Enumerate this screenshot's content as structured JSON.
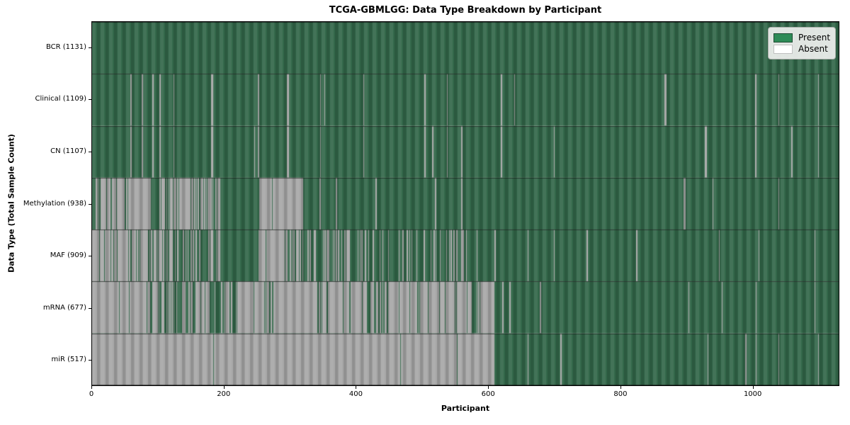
{
  "title": "TCGA-GBMLGG: Data Type Breakdown by Participant",
  "axes": {
    "x_label": "Participant",
    "y_label": "Data Type (Total Sample Count)"
  },
  "legend": {
    "items": [
      {
        "label": "Present",
        "color": "#2e8b57"
      },
      {
        "label": "Absent",
        "color": "#ffffff"
      }
    ]
  },
  "colors": {
    "present_legend": "#2e8b57",
    "present_plot": "#33684a",
    "absent_plot": "#a8a8a8",
    "background": "#ffffff"
  },
  "chart_data": {
    "type": "heatmap",
    "title": "TCGA-GBMLGG: Data Type Breakdown by Participant",
    "xlabel": "Participant",
    "ylabel": "Data Type (Total Sample Count)",
    "x_ticks": [
      0,
      200,
      400,
      600,
      800,
      1000
    ],
    "x_range": [
      0,
      1131
    ],
    "n_participants": 1131,
    "cell_states": [
      "Present",
      "Absent"
    ],
    "legend_position": "upper right",
    "grid": false,
    "rows": [
      {
        "label": "BCR (1131)",
        "data_type": "BCR",
        "total_samples": 1131,
        "absent_runs": []
      },
      {
        "label": "Clinical (1109)",
        "data_type": "Clinical",
        "total_samples": 1109,
        "absent_runs": [
          [
            59,
            60,
            1
          ],
          [
            76,
            77,
            1
          ],
          [
            92,
            93,
            1
          ],
          [
            103,
            104,
            1
          ],
          [
            124,
            125,
            1
          ],
          [
            181,
            183,
            1
          ],
          [
            252,
            253,
            1
          ],
          [
            296,
            298,
            1
          ],
          [
            346,
            347,
            1
          ],
          [
            352,
            353,
            1
          ],
          [
            411,
            412,
            1
          ],
          [
            504,
            505,
            1
          ],
          [
            538,
            539,
            1
          ],
          [
            620,
            621,
            1
          ],
          [
            640,
            641,
            1
          ],
          [
            868,
            870,
            1
          ],
          [
            1005,
            1006,
            1
          ],
          [
            1040,
            1041,
            1
          ],
          [
            1100,
            1101,
            1
          ]
        ]
      },
      {
        "label": "CN (1107)",
        "data_type": "CN",
        "total_samples": 1107,
        "absent_runs": [
          [
            59,
            60,
            1
          ],
          [
            76,
            77,
            1
          ],
          [
            92,
            93,
            1
          ],
          [
            103,
            104,
            1
          ],
          [
            124,
            125,
            1
          ],
          [
            181,
            183,
            1
          ],
          [
            246,
            247,
            1
          ],
          [
            252,
            253,
            1
          ],
          [
            296,
            298,
            1
          ],
          [
            346,
            347,
            1
          ],
          [
            411,
            412,
            1
          ],
          [
            504,
            505,
            1
          ],
          [
            516,
            517,
            1
          ],
          [
            538,
            539,
            1
          ],
          [
            560,
            561,
            1
          ],
          [
            620,
            621,
            1
          ],
          [
            700,
            701,
            1
          ],
          [
            929,
            931,
            1
          ],
          [
            1005,
            1006,
            1
          ],
          [
            1060,
            1061,
            1
          ],
          [
            1100,
            1101,
            1
          ]
        ]
      },
      {
        "label": "Methylation (938)",
        "data_type": "Methylation",
        "total_samples": 938,
        "absent_runs": [
          [
            6,
            55,
            0.5
          ],
          [
            55,
            89,
            0.92
          ],
          [
            103,
            125,
            0.45
          ],
          [
            125,
            194,
            0.72
          ],
          [
            253,
            320,
            0.97
          ],
          [
            345,
            347,
            1
          ],
          [
            370,
            371,
            1
          ],
          [
            430,
            431,
            1
          ],
          [
            520,
            522,
            1
          ],
          [
            560,
            561,
            1
          ],
          [
            897,
            899,
            1
          ],
          [
            940,
            941,
            1
          ],
          [
            1040,
            1041,
            1
          ]
        ]
      },
      {
        "label": "MAF (909)",
        "data_type": "MAF",
        "total_samples": 909,
        "absent_runs": [
          [
            0,
            17,
            0.9
          ],
          [
            17,
            85,
            0.8
          ],
          [
            85,
            153,
            0.4
          ],
          [
            153,
            194,
            0.25
          ],
          [
            253,
            296,
            0.88
          ],
          [
            300,
            320,
            0.6
          ],
          [
            320,
            410,
            0.3
          ],
          [
            410,
            470,
            0.2
          ],
          [
            470,
            520,
            0.25
          ],
          [
            520,
            569,
            0.2
          ],
          [
            583,
            584,
            1
          ],
          [
            610,
            612,
            1
          ],
          [
            660,
            661,
            1
          ],
          [
            700,
            701,
            1
          ],
          [
            750,
            751,
            1
          ],
          [
            825,
            826,
            1
          ],
          [
            950,
            951,
            1
          ],
          [
            1010,
            1011,
            1
          ],
          [
            1095,
            1096,
            1
          ]
        ]
      },
      {
        "label": "mRNA (677)",
        "data_type": "mRNA",
        "total_samples": 677,
        "absent_runs": [
          [
            0,
            85,
            0.93
          ],
          [
            85,
            155,
            0.55
          ],
          [
            155,
            180,
            0.8
          ],
          [
            180,
            195,
            0.2
          ],
          [
            195,
            220,
            0.5
          ],
          [
            220,
            330,
            0.85
          ],
          [
            330,
            415,
            0.75
          ],
          [
            415,
            450,
            0.5
          ],
          [
            450,
            575,
            0.8
          ],
          [
            575,
            585,
            0.1
          ],
          [
            585,
            609,
            0.9
          ],
          [
            622,
            623,
            1
          ],
          [
            633,
            634,
            1
          ],
          [
            679,
            680,
            1
          ],
          [
            904,
            905,
            1
          ],
          [
            954,
            955,
            1
          ],
          [
            1006,
            1007,
            1
          ],
          [
            1095,
            1096,
            1
          ]
        ]
      },
      {
        "label": "miR (517)",
        "data_type": "miR",
        "total_samples": 517,
        "absent_runs": [
          [
            0,
            184,
            1
          ],
          [
            185,
            254,
            1
          ],
          [
            255,
            610,
            0.99
          ],
          [
            660,
            661,
            1
          ],
          [
            710,
            711,
            1
          ],
          [
            933,
            934,
            1
          ],
          [
            990,
            991,
            1
          ],
          [
            1006,
            1007,
            1
          ],
          [
            1040,
            1041,
            1
          ],
          [
            1100,
            1101,
            1
          ]
        ]
      }
    ]
  }
}
